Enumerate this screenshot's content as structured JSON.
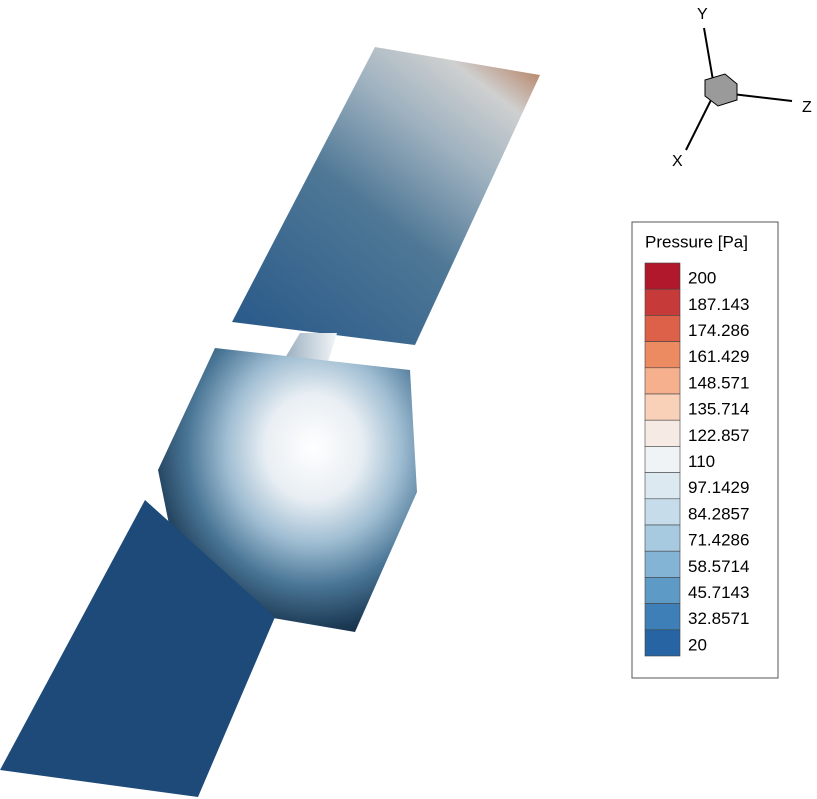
{
  "axes": {
    "x": "X",
    "y": "Y",
    "z": "Z"
  },
  "legend": {
    "title": "Pressure [Pa]",
    "levels": [
      {
        "label": "200",
        "color": "#b2182b"
      },
      {
        "label": "187.143",
        "color": "#c73a3a"
      },
      {
        "label": "174.286",
        "color": "#dc6148"
      },
      {
        "label": "161.429",
        "color": "#ec8a62"
      },
      {
        "label": "148.571",
        "color": "#f6b08e"
      },
      {
        "label": "135.714",
        "color": "#f9d1b8"
      },
      {
        "label": "122.857",
        "color": "#f6ebe4"
      },
      {
        "label": "110",
        "color": "#eff3f6"
      },
      {
        "label": "97.1429",
        "color": "#dde9f1"
      },
      {
        "label": "84.2857",
        "color": "#c6dceb"
      },
      {
        "label": "71.4286",
        "color": "#a7cae1"
      },
      {
        "label": "58.5714",
        "color": "#83b4d6"
      },
      {
        "label": "45.7143",
        "color": "#5d9ac6"
      },
      {
        "label": "32.8571",
        "color": "#3d7fb6"
      },
      {
        "label": "20",
        "color": "#2664a3"
      }
    ]
  }
}
